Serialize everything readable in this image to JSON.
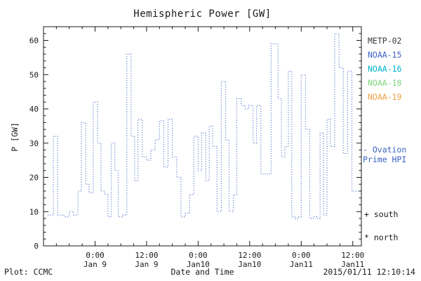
{
  "chart_data": {
    "type": "line",
    "style": "dotted-step",
    "title": "Hemispheric Power [GW]",
    "xlabel": "Date and Time",
    "ylabel": "P [GW]",
    "ylim": [
      0,
      64
    ],
    "yticks": [
      0,
      10,
      20,
      30,
      40,
      50,
      60
    ],
    "x_domain": [
      0,
      74
    ],
    "x_end": 73.5,
    "xticks": [
      {
        "t": 12,
        "line1": "0:00",
        "line2": "Jan 9"
      },
      {
        "t": 24,
        "line1": "12:00",
        "line2": "Jan 9"
      },
      {
        "t": 36,
        "line1": "0:00",
        "line2": "Jan10"
      },
      {
        "t": 48,
        "line1": "12:00",
        "line2": "Jan10"
      },
      {
        "t": 60,
        "line1": "0:00",
        "line2": "Jan11"
      },
      {
        "t": 72,
        "line1": "12:00",
        "line2": "Jan11"
      }
    ],
    "line_color": "#4468c8",
    "grid": false,
    "steps": [
      [
        1.0,
        9
      ],
      [
        2.3,
        32
      ],
      [
        3.3,
        9
      ],
      [
        4.8,
        8.5
      ],
      [
        6.0,
        10
      ],
      [
        7.0,
        9
      ],
      [
        8.0,
        16
      ],
      [
        8.8,
        36
      ],
      [
        9.8,
        18
      ],
      [
        10.6,
        15.5
      ],
      [
        11.6,
        42
      ],
      [
        12.6,
        30
      ],
      [
        13.4,
        16
      ],
      [
        14.2,
        15
      ],
      [
        15.0,
        8.5
      ],
      [
        15.8,
        30
      ],
      [
        16.6,
        22
      ],
      [
        17.4,
        8.5
      ],
      [
        18.4,
        9
      ],
      [
        19.4,
        56
      ],
      [
        20.4,
        32
      ],
      [
        21.2,
        19
      ],
      [
        22.0,
        37
      ],
      [
        23.0,
        26
      ],
      [
        24.0,
        25
      ],
      [
        25.0,
        28
      ],
      [
        26.0,
        31
      ],
      [
        27.0,
        36.5
      ],
      [
        28.0,
        23
      ],
      [
        29.0,
        37
      ],
      [
        30.0,
        26
      ],
      [
        31.0,
        20
      ],
      [
        32.0,
        8.5
      ],
      [
        33.0,
        9.5
      ],
      [
        34.0,
        15
      ],
      [
        35.0,
        32
      ],
      [
        36.0,
        22
      ],
      [
        36.8,
        33
      ],
      [
        37.8,
        19
      ],
      [
        38.6,
        35
      ],
      [
        39.4,
        29
      ],
      [
        40.4,
        10
      ],
      [
        41.4,
        48
      ],
      [
        42.4,
        31
      ],
      [
        43.2,
        10
      ],
      [
        44.2,
        15
      ],
      [
        45.0,
        43
      ],
      [
        46.0,
        41
      ],
      [
        47.0,
        40
      ],
      [
        47.8,
        41
      ],
      [
        48.8,
        30
      ],
      [
        49.6,
        41
      ],
      [
        50.6,
        21
      ],
      [
        53.0,
        59
      ],
      [
        54.6,
        43
      ],
      [
        55.4,
        26
      ],
      [
        56.2,
        29
      ],
      [
        57.0,
        51
      ],
      [
        57.8,
        8.5
      ],
      [
        58.6,
        8
      ],
      [
        59.2,
        8.5
      ],
      [
        60.0,
        50
      ],
      [
        61.0,
        34
      ],
      [
        62.0,
        8
      ],
      [
        62.8,
        8.5
      ],
      [
        63.6,
        8
      ],
      [
        64.4,
        33
      ],
      [
        65.2,
        9
      ],
      [
        66.0,
        37
      ],
      [
        66.8,
        29
      ],
      [
        67.8,
        62
      ],
      [
        68.8,
        52
      ],
      [
        69.8,
        27
      ],
      [
        70.8,
        51
      ],
      [
        71.8,
        16
      ]
    ],
    "legend": [
      {
        "label": "METP-02",
        "color": "#3a3a3a"
      },
      {
        "label": "NOAA-15",
        "color": "#3b63c4"
      },
      {
        "label": "NOAA-16",
        "color": "#00b4cc"
      },
      {
        "label": "NOAA-18",
        "color": "#7fd87f"
      },
      {
        "label": "NOAA-19",
        "color": "#f0a040"
      }
    ],
    "annotations": {
      "ovation_line1": "- Ovation",
      "ovation_line2": "Prime HPI",
      "ovation_color": "#3b63c4",
      "south": "+ south",
      "north": "* north"
    }
  },
  "footer": {
    "left": "Plot: CCMC",
    "right": "2015/01/11 12:10:14"
  }
}
